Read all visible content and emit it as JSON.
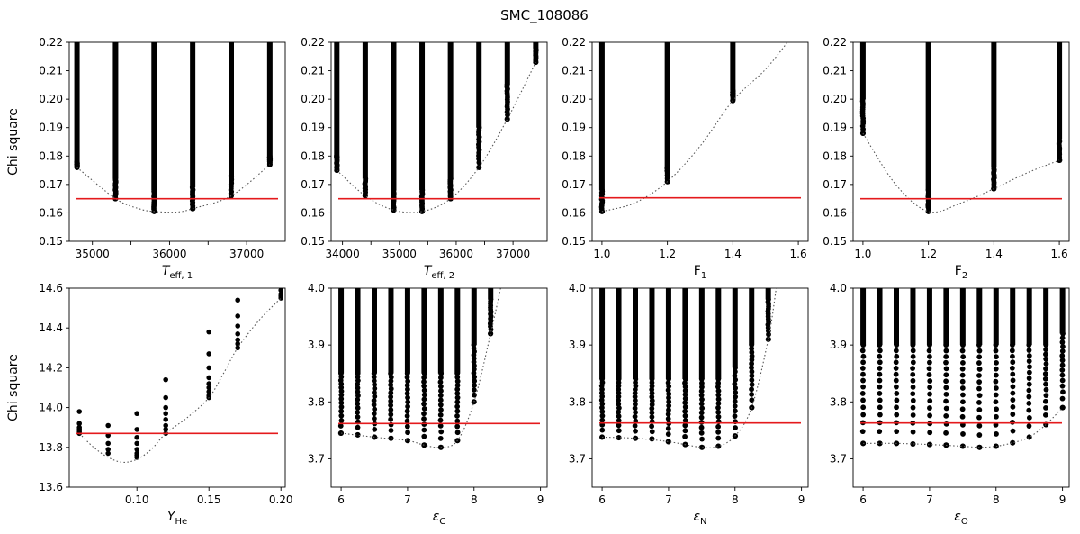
{
  "title": "SMC_108086",
  "colors": {
    "threshold": "#e41a1c",
    "points": "#000000",
    "curve": "#555555"
  },
  "chart_data": [
    {
      "type": "scatter",
      "xlabel": "T_eff,1",
      "xlabel_main": "T",
      "xlabel_sub": "eff, 1",
      "xlabel_italic": true,
      "ylabel": "Chi square",
      "xlim": [
        34700,
        37500
      ],
      "ylim": [
        0.15,
        0.22
      ],
      "xticks": [
        35000,
        35500,
        36000,
        36500,
        37000
      ],
      "xtick_labels": [
        "35000",
        "",
        "36000",
        "",
        "37000"
      ],
      "yticks": [
        0.15,
        0.16,
        0.17,
        0.18,
        0.19,
        0.2,
        0.21,
        0.22
      ],
      "ytick_labels": [
        "0.15",
        "0.16",
        "0.17",
        "0.18",
        "0.19",
        "0.20",
        "0.21",
        "0.22"
      ],
      "threshold": 0.165,
      "columns": [
        {
          "x": 34800,
          "min": 0.176,
          "dense_to": 0.178
        },
        {
          "x": 35300,
          "min": 0.165,
          "dense_to": 0.172
        },
        {
          "x": 35800,
          "min": 0.1605,
          "dense_to": 0.168
        },
        {
          "x": 36300,
          "min": 0.1615,
          "dense_to": 0.169
        },
        {
          "x": 36800,
          "min": 0.166,
          "dense_to": 0.173
        },
        {
          "x": 37300,
          "min": 0.177,
          "dense_to": 0.18
        }
      ],
      "curve": [
        [
          34800,
          0.176
        ],
        [
          35300,
          0.165
        ],
        [
          35600,
          0.1615
        ],
        [
          35800,
          0.1605
        ],
        [
          36100,
          0.1603
        ],
        [
          36300,
          0.1615
        ],
        [
          36800,
          0.166
        ],
        [
          37300,
          0.177
        ]
      ]
    },
    {
      "type": "scatter",
      "xlabel": "T_eff,2",
      "xlabel_main": "T",
      "xlabel_sub": "eff, 2",
      "xlabel_italic": true,
      "ylabel": "",
      "xlim": [
        33800,
        37600
      ],
      "ylim": [
        0.15,
        0.22
      ],
      "xticks": [
        34000,
        34500,
        35000,
        35500,
        36000,
        36500,
        37000
      ],
      "xtick_labels": [
        "34000",
        "",
        "35000",
        "",
        "36000",
        "",
        "37000"
      ],
      "yticks": [
        0.15,
        0.16,
        0.17,
        0.18,
        0.19,
        0.2,
        0.21,
        0.22
      ],
      "ytick_labels": [
        "0.15",
        "0.16",
        "0.17",
        "0.18",
        "0.19",
        "0.20",
        "0.21",
        "0.22"
      ],
      "threshold": 0.165,
      "columns": [
        {
          "x": 33900,
          "min": 0.175,
          "dense_to": 0.18
        },
        {
          "x": 34400,
          "min": 0.166,
          "dense_to": 0.172
        },
        {
          "x": 34900,
          "min": 0.161,
          "dense_to": 0.168
        },
        {
          "x": 35400,
          "min": 0.1605,
          "dense_to": 0.168
        },
        {
          "x": 35900,
          "min": 0.165,
          "dense_to": 0.172
        },
        {
          "x": 36400,
          "min": 0.176,
          "dense_to": 0.19
        },
        {
          "x": 36900,
          "min": 0.193,
          "dense_to": 0.205
        },
        {
          "x": 37400,
          "min": 0.213,
          "dense_to": 0.218
        }
      ],
      "curve": [
        [
          33900,
          0.175
        ],
        [
          34400,
          0.166
        ],
        [
          34900,
          0.161
        ],
        [
          35400,
          0.1605
        ],
        [
          35900,
          0.165
        ],
        [
          36400,
          0.176
        ],
        [
          36900,
          0.193
        ],
        [
          37400,
          0.213
        ]
      ]
    },
    {
      "type": "scatter",
      "xlabel": "F1",
      "xlabel_main": "F",
      "xlabel_sub": "1",
      "xlabel_italic": false,
      "ylabel": "",
      "xlim": [
        0.97,
        1.63
      ],
      "ylim": [
        0.15,
        0.22
      ],
      "xticks": [
        1.0,
        1.2,
        1.4,
        1.6
      ],
      "xtick_labels": [
        "1.0",
        "1.2",
        "1.4",
        "1.6"
      ],
      "yticks": [
        0.15,
        0.16,
        0.17,
        0.18,
        0.19,
        0.2,
        0.21,
        0.22
      ],
      "ytick_labels": [
        "0.15",
        "0.16",
        "0.17",
        "0.18",
        "0.19",
        "0.20",
        "0.21",
        "0.22"
      ],
      "threshold": 0.1653,
      "columns": [
        {
          "x": 1.0,
          "min": 0.1605,
          "dense_to": 0.168
        },
        {
          "x": 1.2,
          "min": 0.171,
          "dense_to": 0.176
        },
        {
          "x": 1.4,
          "min": 0.1995,
          "dense_to": 0.203
        }
      ],
      "curve": [
        [
          1.0,
          0.1605
        ],
        [
          1.1,
          0.1635
        ],
        [
          1.2,
          0.171
        ],
        [
          1.3,
          0.1835
        ],
        [
          1.4,
          0.1995
        ],
        [
          1.5,
          0.2105
        ],
        [
          1.58,
          0.222
        ]
      ]
    },
    {
      "type": "scatter",
      "xlabel": "F2",
      "xlabel_main": "F",
      "xlabel_sub": "2",
      "xlabel_italic": false,
      "ylabel": "",
      "xlim": [
        0.97,
        1.63
      ],
      "ylim": [
        0.15,
        0.22
      ],
      "xticks": [
        1.0,
        1.2,
        1.4,
        1.6
      ],
      "xtick_labels": [
        "1.0",
        "1.2",
        "1.4",
        "1.6"
      ],
      "yticks": [
        0.15,
        0.16,
        0.17,
        0.18,
        0.19,
        0.2,
        0.21,
        0.22
      ],
      "ytick_labels": [
        "0.15",
        "0.16",
        "0.17",
        "0.18",
        "0.19",
        "0.20",
        "0.21",
        "0.22"
      ],
      "threshold": 0.165,
      "columns": [
        {
          "x": 1.0,
          "min": 0.188,
          "dense_to": 0.2
        },
        {
          "x": 1.2,
          "min": 0.1605,
          "dense_to": 0.168
        },
        {
          "x": 1.4,
          "min": 0.1685,
          "dense_to": 0.176
        },
        {
          "x": 1.6,
          "min": 0.1785,
          "dense_to": 0.186
        }
      ],
      "curve": [
        [
          1.0,
          0.188
        ],
        [
          1.1,
          0.17
        ],
        [
          1.2,
          0.1605
        ],
        [
          1.3,
          0.1635
        ],
        [
          1.4,
          0.1685
        ],
        [
          1.5,
          0.174
        ],
        [
          1.6,
          0.1785
        ]
      ]
    },
    {
      "type": "scatter",
      "xlabel": "Y_He",
      "xlabel_main": "Y",
      "xlabel_sub": "He",
      "xlabel_italic": true,
      "ylabel": "Chi square",
      "xlim": [
        0.053,
        0.203
      ],
      "ylim": [
        13.6,
        14.6
      ],
      "xticks": [
        0.05,
        0.1,
        0.15,
        0.2
      ],
      "xtick_labels": [
        "",
        "0.10",
        "0.15",
        "0.20"
      ],
      "yticks": [
        13.6,
        13.8,
        14.0,
        14.2,
        14.4,
        14.6
      ],
      "ytick_labels": [
        "13.6",
        "13.8",
        "14.0",
        "14.2",
        "14.4",
        "14.6"
      ],
      "threshold": 13.87,
      "sparse_columns": [
        {
          "x": 0.06,
          "y": [
            13.98,
            13.92,
            13.9,
            13.89,
            13.88,
            13.87
          ]
        },
        {
          "x": 0.08,
          "y": [
            13.91,
            13.86,
            13.82,
            13.79,
            13.77
          ]
        },
        {
          "x": 0.1,
          "y": [
            13.97,
            13.89,
            13.85,
            13.82,
            13.79,
            13.77,
            13.76,
            13.75
          ]
        },
        {
          "x": 0.12,
          "y": [
            14.14,
            14.05,
            14.0,
            13.97,
            13.94,
            13.91,
            13.89,
            13.87
          ]
        },
        {
          "x": 0.15,
          "y": [
            14.38,
            14.27,
            14.2,
            14.15,
            14.12,
            14.1,
            14.08,
            14.06,
            14.05
          ]
        },
        {
          "x": 0.17,
          "y": [
            14.54,
            14.46,
            14.41,
            14.37,
            14.34,
            14.32,
            14.3
          ]
        },
        {
          "x": 0.2,
          "y": [
            14.59,
            14.57,
            14.56,
            14.55
          ]
        }
      ],
      "curve": [
        [
          0.06,
          13.87
        ],
        [
          0.07,
          13.8
        ],
        [
          0.08,
          13.75
        ],
        [
          0.09,
          13.725
        ],
        [
          0.1,
          13.74
        ],
        [
          0.11,
          13.79
        ],
        [
          0.12,
          13.87
        ],
        [
          0.135,
          13.95
        ],
        [
          0.15,
          14.05
        ],
        [
          0.16,
          14.17
        ],
        [
          0.17,
          14.3
        ],
        [
          0.185,
          14.44
        ],
        [
          0.2,
          14.55
        ]
      ]
    },
    {
      "type": "scatter",
      "xlabel": "epsilon_C",
      "xlabel_main": "ε",
      "xlabel_sub": "C",
      "xlabel_italic": true,
      "ylabel": "",
      "xlim": [
        5.85,
        9.1
      ],
      "ylim": [
        3.65,
        4.0
      ],
      "xticks": [
        6,
        7,
        8,
        9
      ],
      "xtick_labels": [
        "6",
        "7",
        "8",
        "9"
      ],
      "yticks": [
        3.7,
        3.8,
        3.9,
        4.0
      ],
      "ytick_labels": [
        "3.7",
        "3.8",
        "3.9",
        "4.0"
      ],
      "threshold": 3.762,
      "columns": [
        {
          "x": 6.0,
          "min": 3.745,
          "dense_to": 3.85
        },
        {
          "x": 6.25,
          "min": 3.742,
          "dense_to": 3.85
        },
        {
          "x": 6.5,
          "min": 3.738,
          "dense_to": 3.85
        },
        {
          "x": 6.75,
          "min": 3.736,
          "dense_to": 3.85
        },
        {
          "x": 7.0,
          "min": 3.732,
          "dense_to": 3.85
        },
        {
          "x": 7.25,
          "min": 3.724,
          "dense_to": 3.85
        },
        {
          "x": 7.5,
          "min": 3.72,
          "dense_to": 3.85
        },
        {
          "x": 7.75,
          "min": 3.732,
          "dense_to": 3.85
        },
        {
          "x": 8.0,
          "min": 3.8,
          "dense_to": 3.9
        },
        {
          "x": 8.25,
          "min": 3.92,
          "dense_to": 3.98
        }
      ],
      "curve": [
        [
          6.0,
          3.745
        ],
        [
          6.5,
          3.738
        ],
        [
          7.0,
          3.732
        ],
        [
          7.25,
          3.724
        ],
        [
          7.5,
          3.72
        ],
        [
          7.75,
          3.732
        ],
        [
          8.0,
          3.8
        ],
        [
          8.25,
          3.92
        ],
        [
          8.4,
          4.0
        ]
      ]
    },
    {
      "type": "scatter",
      "xlabel": "epsilon_N",
      "xlabel_main": "ε",
      "xlabel_sub": "N",
      "xlabel_italic": true,
      "ylabel": "",
      "xlim": [
        5.85,
        9.1
      ],
      "ylim": [
        3.65,
        4.0
      ],
      "xticks": [
        6,
        7,
        8,
        9
      ],
      "xtick_labels": [
        "6",
        "7",
        "8",
        "9"
      ],
      "yticks": [
        3.7,
        3.8,
        3.9,
        4.0
      ],
      "ytick_labels": [
        "3.7",
        "3.8",
        "3.9",
        "4.0"
      ],
      "threshold": 3.763,
      "columns": [
        {
          "x": 6.0,
          "min": 3.738,
          "dense_to": 3.84
        },
        {
          "x": 6.25,
          "min": 3.737,
          "dense_to": 3.84
        },
        {
          "x": 6.5,
          "min": 3.736,
          "dense_to": 3.84
        },
        {
          "x": 6.75,
          "min": 3.735,
          "dense_to": 3.84
        },
        {
          "x": 7.0,
          "min": 3.73,
          "dense_to": 3.84
        },
        {
          "x": 7.25,
          "min": 3.725,
          "dense_to": 3.84
        },
        {
          "x": 7.5,
          "min": 3.72,
          "dense_to": 3.84
        },
        {
          "x": 7.75,
          "min": 3.722,
          "dense_to": 3.84
        },
        {
          "x": 8.0,
          "min": 3.74,
          "dense_to": 3.86
        },
        {
          "x": 8.25,
          "min": 3.79,
          "dense_to": 3.9
        },
        {
          "x": 8.5,
          "min": 3.91,
          "dense_to": 3.98
        }
      ],
      "curve": [
        [
          6.0,
          3.738
        ],
        [
          6.5,
          3.736
        ],
        [
          7.0,
          3.73
        ],
        [
          7.5,
          3.72
        ],
        [
          7.75,
          3.722
        ],
        [
          8.0,
          3.74
        ],
        [
          8.25,
          3.79
        ],
        [
          8.5,
          3.91
        ],
        [
          8.62,
          4.0
        ]
      ]
    },
    {
      "type": "scatter",
      "xlabel": "epsilon_O",
      "xlabel_main": "ε",
      "xlabel_sub": "O",
      "xlabel_italic": true,
      "ylabel": "",
      "xlim": [
        5.85,
        9.1
      ],
      "ylim": [
        3.65,
        4.0
      ],
      "xticks": [
        6,
        7,
        8,
        9
      ],
      "xtick_labels": [
        "6",
        "7",
        "8",
        "9"
      ],
      "yticks": [
        3.7,
        3.8,
        3.9,
        4.0
      ],
      "ytick_labels": [
        "3.7",
        "3.8",
        "3.9",
        "4.0"
      ],
      "threshold": 3.763,
      "columns": [
        {
          "x": 6.0,
          "min": 3.727,
          "dense_to": 3.9
        },
        {
          "x": 6.25,
          "min": 3.727,
          "dense_to": 3.9
        },
        {
          "x": 6.5,
          "min": 3.727,
          "dense_to": 3.9
        },
        {
          "x": 6.75,
          "min": 3.726,
          "dense_to": 3.9
        },
        {
          "x": 7.0,
          "min": 3.725,
          "dense_to": 3.9
        },
        {
          "x": 7.25,
          "min": 3.724,
          "dense_to": 3.9
        },
        {
          "x": 7.5,
          "min": 3.722,
          "dense_to": 3.9
        },
        {
          "x": 7.75,
          "min": 3.72,
          "dense_to": 3.9
        },
        {
          "x": 8.0,
          "min": 3.722,
          "dense_to": 3.9
        },
        {
          "x": 8.25,
          "min": 3.728,
          "dense_to": 3.9
        },
        {
          "x": 8.5,
          "min": 3.738,
          "dense_to": 3.9
        },
        {
          "x": 8.75,
          "min": 3.76,
          "dense_to": 3.9
        },
        {
          "x": 9.0,
          "min": 3.79,
          "dense_to": 3.92
        }
      ],
      "curve": [
        [
          6.0,
          3.727
        ],
        [
          6.5,
          3.727
        ],
        [
          7.0,
          3.725
        ],
        [
          7.5,
          3.722
        ],
        [
          7.75,
          3.72
        ],
        [
          8.0,
          3.722
        ],
        [
          8.25,
          3.728
        ],
        [
          8.5,
          3.738
        ],
        [
          8.75,
          3.76
        ],
        [
          9.0,
          3.79
        ]
      ]
    }
  ]
}
